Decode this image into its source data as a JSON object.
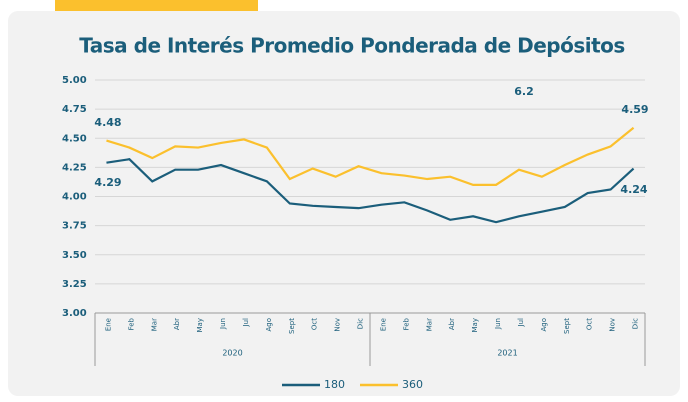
{
  "chart_data": {
    "type": "line",
    "title": "Tasa de Interés Promedio Ponderada de Depósitos",
    "categories": [
      "Ene",
      "Feb",
      "Mar",
      "Abr",
      "May",
      "Jun",
      "Jul",
      "Ago",
      "Sept",
      "Oct",
      "Nov",
      "Dic",
      "Ene",
      "Feb",
      "Mar",
      "Abr",
      "May",
      "Jun",
      "Jul",
      "Ago",
      "Sept",
      "Oct",
      "Nov",
      "Dic"
    ],
    "groups": [
      "2020",
      "2021"
    ],
    "series": [
      {
        "name": "180",
        "color": "#1b5e7b",
        "values": [
          4.29,
          4.32,
          4.13,
          4.23,
          4.23,
          4.27,
          4.2,
          4.13,
          3.94,
          3.92,
          3.91,
          3.9,
          3.93,
          3.95,
          3.88,
          3.8,
          3.83,
          3.78,
          3.83,
          3.87,
          3.91,
          4.03,
          4.06,
          4.24
        ]
      },
      {
        "name": "360",
        "color": "#fbc02d",
        "values": [
          4.48,
          4.42,
          4.33,
          4.43,
          4.42,
          4.46,
          4.49,
          4.42,
          4.15,
          4.24,
          4.17,
          4.26,
          4.2,
          4.18,
          4.15,
          4.17,
          4.1,
          4.1,
          4.23,
          4.17,
          4.27,
          4.36,
          4.43,
          4.59
        ]
      }
    ],
    "annotations": [
      "4.48",
      "4.29",
      "6.2",
      "4.59",
      "4.24"
    ],
    "ylim": [
      3,
      5
    ],
    "yticks": [
      {
        "value": 3,
        "label": "3.00"
      },
      {
        "value": 3.25,
        "label": "3.25"
      },
      {
        "value": 3.5,
        "label": "3.50"
      },
      {
        "value": 3.75,
        "label": "3.75"
      },
      {
        "value": 4,
        "label": "4.00"
      },
      {
        "value": 4.25,
        "label": "4.25"
      },
      {
        "value": 4.5,
        "label": "4.50"
      },
      {
        "value": 4.75,
        "label": "4.75"
      },
      {
        "value": 5,
        "label": "5.00"
      }
    ],
    "grid": true
  }
}
